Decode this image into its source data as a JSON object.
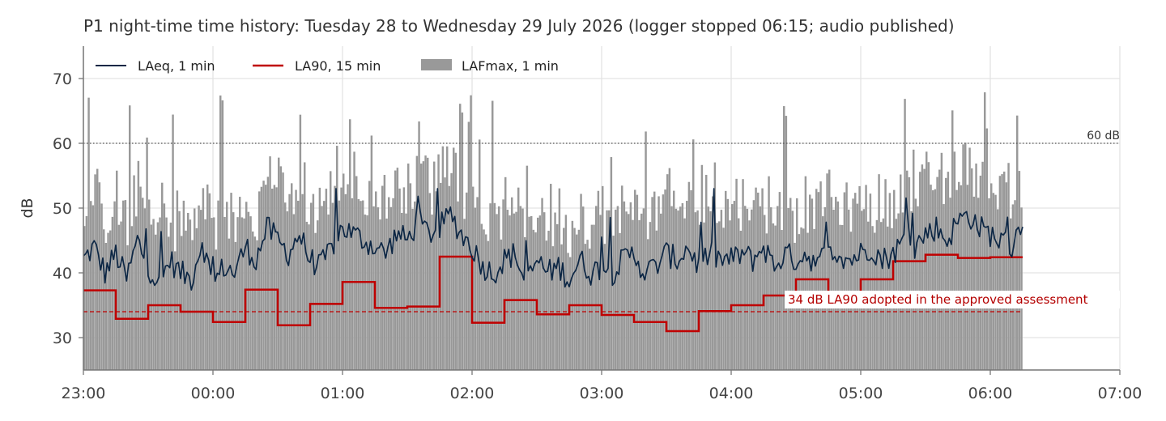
{
  "chart_data": {
    "type": "line",
    "title": "P1 night-time time history: Tuesday 28 to Wednesday 29 July 2026 (logger stopped 06:15; audio published)",
    "xlabel": "",
    "ylabel": "dB",
    "xlim_minutes_after_23": [
      0,
      480
    ],
    "ylim": [
      25,
      75
    ],
    "x_ticks": [
      "23:00",
      "00:00",
      "01:00",
      "02:00",
      "03:00",
      "04:00",
      "05:00",
      "06:00",
      "07:00"
    ],
    "y_ticks": [
      30,
      40,
      50,
      60,
      70
    ],
    "grid": true,
    "legend_position": "top-left",
    "series": [
      {
        "name": "LAeq, 1 min",
        "kind": "line",
        "resolution": "1 min",
        "color": "#0d2745",
        "anchors_time": [
          "23:00",
          "23:05",
          "23:10",
          "23:15",
          "23:20",
          "23:25",
          "23:30",
          "23:35",
          "23:40",
          "23:45",
          "23:50",
          "23:55",
          "00:00",
          "00:05",
          "00:10",
          "00:15",
          "00:20",
          "00:25",
          "00:30",
          "00:35",
          "00:40",
          "00:45",
          "00:50",
          "00:55",
          "01:00",
          "01:05",
          "01:10",
          "01:15",
          "01:20",
          "01:25",
          "01:30",
          "01:35",
          "01:40",
          "01:45",
          "01:50",
          "01:55",
          "02:00",
          "02:05",
          "02:10",
          "02:15",
          "02:20",
          "02:25",
          "02:30",
          "02:35",
          "02:40",
          "02:45",
          "02:50",
          "02:55",
          "03:00",
          "03:05",
          "03:10",
          "03:15",
          "03:20",
          "03:25",
          "03:30",
          "03:35",
          "03:40",
          "03:45",
          "03:50",
          "03:55",
          "04:00",
          "04:05",
          "04:10",
          "04:15",
          "04:20",
          "04:25",
          "04:30",
          "04:35",
          "04:40",
          "04:45",
          "04:50",
          "04:55",
          "05:00",
          "05:05",
          "05:10",
          "05:15",
          "05:20",
          "05:25",
          "05:30",
          "05:35",
          "05:40",
          "05:45",
          "05:50",
          "05:55",
          "06:00",
          "06:05",
          "06:10",
          "06:15"
        ],
        "anchors_db": [
          42,
          44,
          40,
          43,
          39,
          45,
          41,
          38,
          42,
          40,
          39,
          45,
          38,
          41,
          40,
          44,
          42,
          47,
          45,
          43,
          46,
          42,
          41,
          44,
          47,
          46,
          45,
          44,
          43,
          46,
          45,
          48,
          46,
          47,
          49,
          46,
          44,
          41,
          40,
          42,
          43,
          38,
          42,
          40,
          41,
          39,
          42,
          40,
          41,
          40,
          42,
          43,
          40,
          41,
          43,
          42,
          44,
          41,
          43,
          42,
          42,
          43,
          42,
          44,
          41,
          43,
          42,
          43,
          41,
          44,
          43,
          42,
          43,
          44,
          42,
          43,
          45,
          44,
          46,
          47,
          45,
          48,
          49,
          47,
          46,
          45,
          44,
          48
        ]
      },
      {
        "name": "LA90, 15 min",
        "kind": "step",
        "resolution": "15 min",
        "color": "#c00000",
        "interval_start": [
          "23:00",
          "23:15",
          "23:30",
          "23:45",
          "00:00",
          "00:15",
          "00:30",
          "00:45",
          "01:00",
          "01:15",
          "01:30",
          "01:45",
          "02:00",
          "02:15",
          "02:30",
          "02:45",
          "03:00",
          "03:15",
          "03:30",
          "03:45",
          "04:00",
          "04:15",
          "04:30",
          "04:45",
          "05:00",
          "05:15",
          "05:30",
          "05:45",
          "06:00"
        ],
        "db": [
          37.3,
          32.9,
          35.0,
          34.0,
          32.4,
          37.4,
          31.9,
          35.2,
          38.6,
          34.6,
          34.8,
          42.5,
          32.3,
          35.8,
          33.6,
          35.0,
          33.5,
          32.4,
          31.0,
          34.1,
          35.0,
          36.5,
          39.0,
          37.1,
          39.0,
          41.8,
          42.8,
          42.3,
          42.4
        ]
      },
      {
        "name": "LAFmax, 1 min",
        "kind": "bar",
        "resolution": "1 min",
        "color": "#999999",
        "median_db": 50,
        "peak_db": 68.4
      }
    ],
    "reference_lines": [
      {
        "label": "60 dB",
        "value": 60,
        "style": "dotted",
        "color": "#555555"
      },
      {
        "label": "34 dB LA90 adopted in the approved assessment",
        "value": 34,
        "style": "dashed",
        "color": "#c00000"
      }
    ]
  }
}
